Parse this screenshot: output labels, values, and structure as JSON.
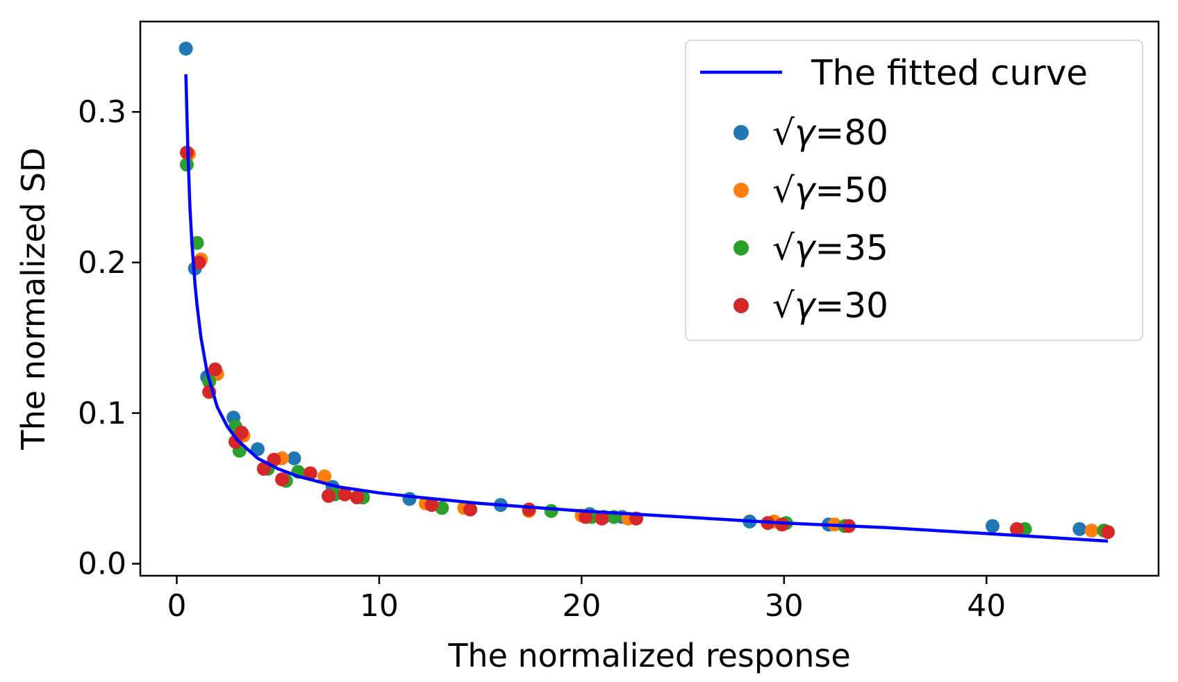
{
  "chart_data": {
    "type": "scatter",
    "title": "",
    "xlabel": "The normalized response",
    "ylabel": "The normalized SD",
    "xlim": [
      -1.8,
      48.5
    ],
    "ylim": [
      -0.008,
      0.36
    ],
    "xticks": [
      {
        "value": 0,
        "label": "0"
      },
      {
        "value": 10,
        "label": "10"
      },
      {
        "value": 20,
        "label": "20"
      },
      {
        "value": 30,
        "label": "30"
      },
      {
        "value": 40,
        "label": "40"
      }
    ],
    "yticks": [
      {
        "value": 0.0,
        "label": "0.0"
      },
      {
        "value": 0.1,
        "label": "0.1"
      },
      {
        "value": 0.2,
        "label": "0.2"
      },
      {
        "value": 0.3,
        "label": "0.3"
      }
    ],
    "grid": false,
    "legend_position": "top-right",
    "fit": {
      "name": "The fitted curve",
      "color": "#0000ff",
      "x": [
        0.45,
        0.55,
        0.65,
        0.75,
        0.9,
        1.0,
        1.2,
        1.5,
        2.0,
        2.5,
        3.0,
        4.0,
        5.0,
        6.0,
        8.0,
        10.0,
        12.0,
        15.0,
        20.0,
        25.0,
        30.0,
        35.0,
        40.0,
        46.0
      ],
      "y": [
        0.325,
        0.275,
        0.237,
        0.213,
        0.186,
        0.172,
        0.15,
        0.127,
        0.104,
        0.091,
        0.082,
        0.07,
        0.063,
        0.058,
        0.051,
        0.047,
        0.044,
        0.04,
        0.035,
        0.031,
        0.027,
        0.024,
        0.02,
        0.015
      ]
    },
    "series": [
      {
        "name": "√γ=80",
        "label_sym": "√γ",
        "label_val": "=80",
        "color": "#1f77b4",
        "points": [
          [
            0.45,
            0.342
          ],
          [
            0.9,
            0.196
          ],
          [
            1.5,
            0.124
          ],
          [
            2.8,
            0.097
          ],
          [
            4.0,
            0.076
          ],
          [
            5.8,
            0.07
          ],
          [
            7.7,
            0.051
          ],
          [
            11.5,
            0.043
          ],
          [
            16.0,
            0.039
          ],
          [
            20.4,
            0.033
          ],
          [
            21.1,
            0.031
          ],
          [
            22.0,
            0.031
          ],
          [
            28.3,
            0.028
          ],
          [
            32.2,
            0.026
          ],
          [
            40.3,
            0.025
          ],
          [
            44.6,
            0.023
          ]
        ]
      },
      {
        "name": "√γ=50",
        "label_sym": "√γ",
        "label_val": "=50",
        "color": "#ff7f0e",
        "points": [
          [
            0.6,
            0.272
          ],
          [
            1.2,
            0.202
          ],
          [
            2.0,
            0.126
          ],
          [
            3.3,
            0.085
          ],
          [
            5.2,
            0.07
          ],
          [
            7.3,
            0.058
          ],
          [
            12.3,
            0.04
          ],
          [
            14.2,
            0.037
          ],
          [
            17.4,
            0.035
          ],
          [
            20.0,
            0.032
          ],
          [
            22.3,
            0.03
          ],
          [
            29.5,
            0.028
          ],
          [
            32.5,
            0.026
          ],
          [
            45.2,
            0.022
          ]
        ]
      },
      {
        "name": "√γ=35",
        "label_sym": "√γ",
        "label_val": "=35",
        "color": "#2ca02c",
        "points": [
          [
            0.5,
            0.265
          ],
          [
            1.0,
            0.213
          ],
          [
            1.6,
            0.121
          ],
          [
            2.9,
            0.091
          ],
          [
            3.1,
            0.075
          ],
          [
            4.5,
            0.063
          ],
          [
            5.4,
            0.055
          ],
          [
            6.0,
            0.061
          ],
          [
            7.8,
            0.046
          ],
          [
            9.2,
            0.044
          ],
          [
            13.1,
            0.037
          ],
          [
            18.5,
            0.035
          ],
          [
            20.5,
            0.031
          ],
          [
            21.6,
            0.031
          ],
          [
            30.1,
            0.027
          ],
          [
            33.0,
            0.025
          ],
          [
            41.9,
            0.023
          ],
          [
            45.8,
            0.022
          ]
        ]
      },
      {
        "name": "√γ=30",
        "label_sym": "√γ",
        "label_val": "=30",
        "color": "#d62728",
        "points": [
          [
            0.5,
            0.273
          ],
          [
            1.1,
            0.2
          ],
          [
            1.6,
            0.114
          ],
          [
            1.9,
            0.129
          ],
          [
            2.9,
            0.081
          ],
          [
            3.2,
            0.087
          ],
          [
            4.3,
            0.063
          ],
          [
            4.8,
            0.069
          ],
          [
            5.2,
            0.056
          ],
          [
            6.6,
            0.06
          ],
          [
            7.5,
            0.045
          ],
          [
            8.3,
            0.046
          ],
          [
            8.9,
            0.044
          ],
          [
            12.6,
            0.039
          ],
          [
            14.5,
            0.036
          ],
          [
            17.4,
            0.036
          ],
          [
            20.2,
            0.031
          ],
          [
            21.0,
            0.03
          ],
          [
            22.7,
            0.03
          ],
          [
            29.2,
            0.027
          ],
          [
            29.9,
            0.026
          ],
          [
            33.2,
            0.025
          ],
          [
            41.5,
            0.023
          ],
          [
            46.0,
            0.021
          ]
        ]
      }
    ]
  }
}
